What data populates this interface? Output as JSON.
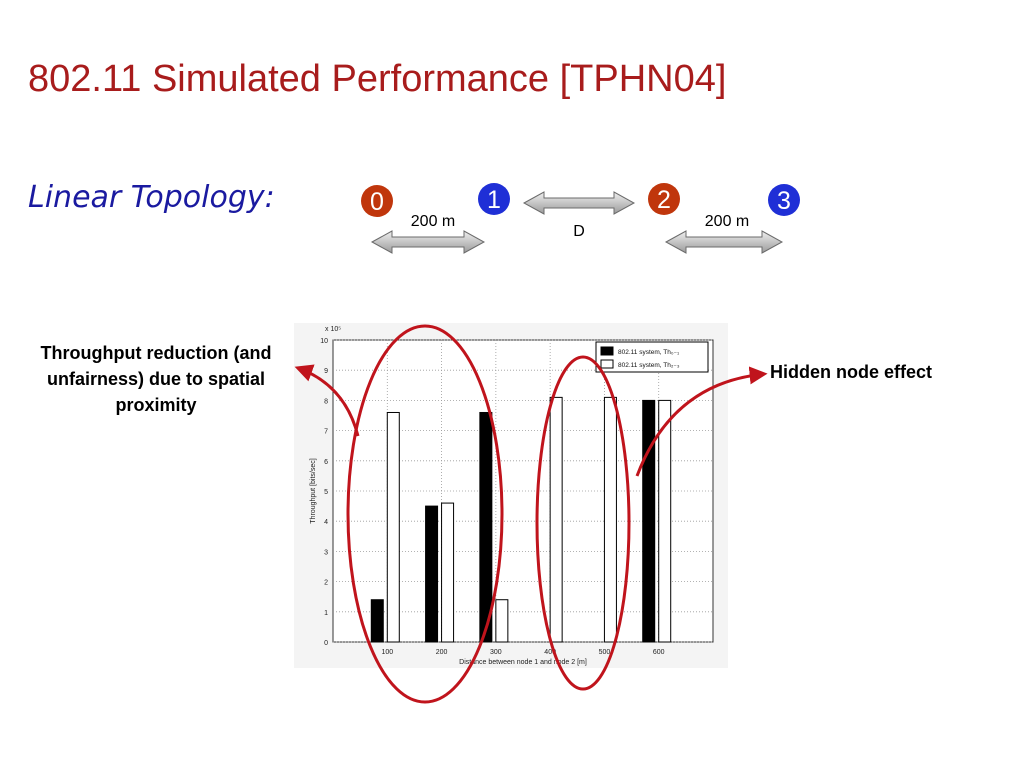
{
  "slide": {
    "title": "802.11 Simulated Performance [TPHN04]",
    "topology_label": "Linear Topology:"
  },
  "topology": {
    "nodes": [
      {
        "label": "0",
        "color": "#c0360c"
      },
      {
        "label": "1",
        "color": "#1f2fd6"
      },
      {
        "label": "2",
        "color": "#c0360c"
      },
      {
        "label": "3",
        "color": "#1f2fd6"
      }
    ],
    "links": [
      {
        "label": "200 m"
      },
      {
        "label": "D"
      },
      {
        "label": "200 m"
      }
    ]
  },
  "annotations": {
    "left": "Throughput reduction (and unfairness) due to spatial proximity",
    "right": "Hidden node effect",
    "ellipse_color": "#c0141c",
    "arrow_color": "#c0141c"
  },
  "chart_data": {
    "type": "bar",
    "title": "",
    "xlabel": "Distance between node 1 and node 2 [m]",
    "ylabel": "Throughput [bits/sec]",
    "y_exponent_label": "x 10⁵",
    "categories": [
      "100",
      "200",
      "300",
      "400",
      "500",
      "600"
    ],
    "ylim": [
      0,
      10
    ],
    "yticks": [
      0,
      1,
      2,
      3,
      4,
      5,
      6,
      7,
      8,
      9,
      10
    ],
    "series": [
      {
        "name": "802.11 system, Th₀₋₁",
        "fill": "#000000",
        "values": [
          1.4,
          4.5,
          7.6,
          0,
          0,
          8.0
        ]
      },
      {
        "name": "802.11 system, Th₂₋₃",
        "fill": "#ffffff",
        "values": [
          7.6,
          4.6,
          1.4,
          8.1,
          8.1,
          8.0
        ]
      }
    ],
    "grid": true,
    "legend": "top-right"
  }
}
